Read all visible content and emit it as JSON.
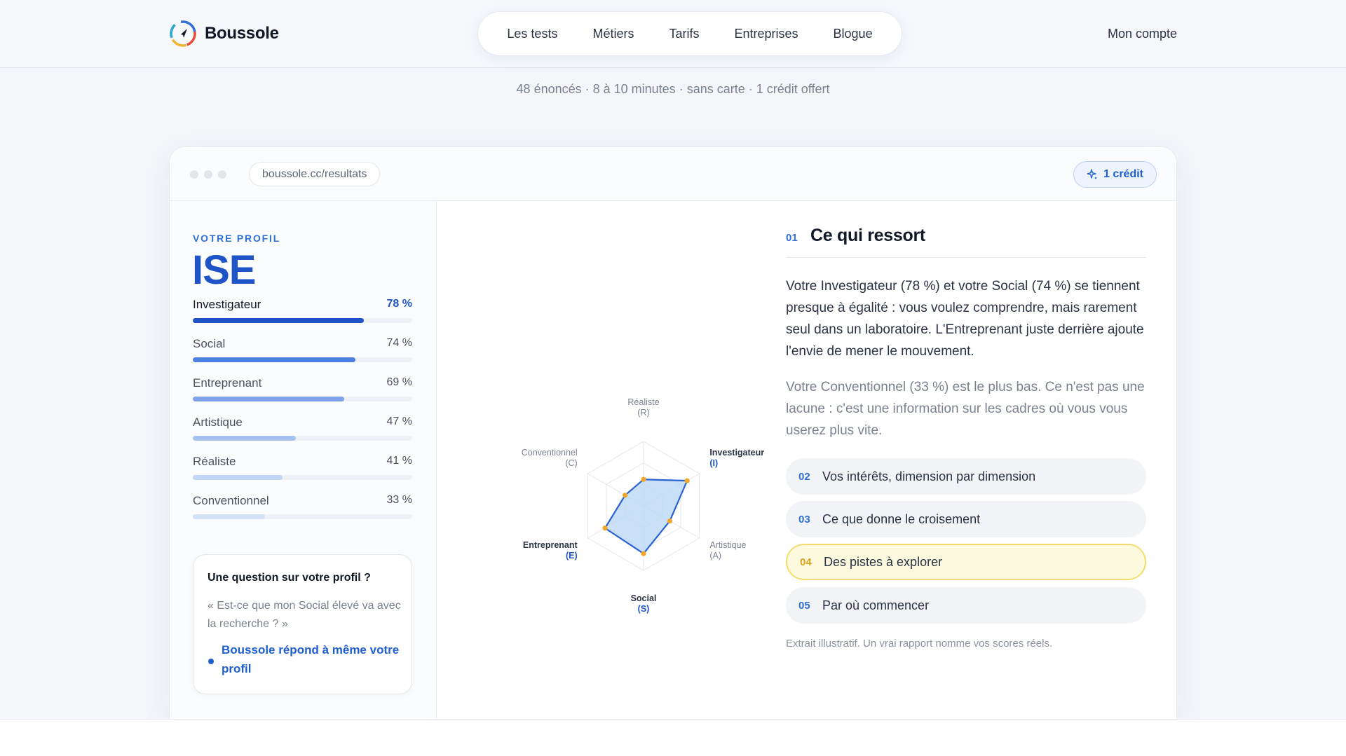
{
  "header": {
    "brand": "Boussole",
    "nav": [
      "Les tests",
      "Métiers",
      "Tarifs",
      "Entreprises",
      "Blogue"
    ],
    "account": "Mon compte"
  },
  "subline": "48 énoncés · 8 à 10 minutes · sans carte · 1 crédit offert",
  "browser": {
    "url": "boussole.cc/resultats",
    "credit": "1 crédit"
  },
  "profile": {
    "eyebrow": "VOTRE PROFIL",
    "code": "ISE",
    "scores": [
      {
        "name": "Investigateur",
        "pct": "78 %",
        "value": 78,
        "color": "#1e54c7",
        "strong": true
      },
      {
        "name": "Social",
        "pct": "74 %",
        "value": 74,
        "color": "#4d7fe0",
        "strong": false
      },
      {
        "name": "Entreprenant",
        "pct": "69 %",
        "value": 69,
        "color": "#7ea3ea",
        "strong": false
      },
      {
        "name": "Artistique",
        "pct": "47 %",
        "value": 47,
        "color": "#a6c2f1",
        "strong": false
      },
      {
        "name": "Réaliste",
        "pct": "41 %",
        "value": 41,
        "color": "#c3d6f5",
        "strong": false
      },
      {
        "name": "Conventionnel",
        "pct": "33 %",
        "value": 33,
        "color": "#d4e2f7",
        "strong": false
      }
    ]
  },
  "question": {
    "title": "Une question sur votre profil ?",
    "quote": "« Est-ce que mon Social élevé va avec la recherche ? »",
    "answer": "Boussole répond à même votre profil"
  },
  "chart_data": {
    "type": "radar",
    "axes": [
      {
        "name": "Réaliste",
        "code": "(R)",
        "value": 41,
        "highlight": false
      },
      {
        "name": "Investigateur",
        "code": "(I)",
        "value": 78,
        "highlight": true
      },
      {
        "name": "Artistique",
        "code": "(A)",
        "value": 47,
        "highlight": false
      },
      {
        "name": "Social",
        "code": "(S)",
        "value": 74,
        "highlight": true
      },
      {
        "name": "Entreprenant",
        "code": "(E)",
        "value": 69,
        "highlight": true
      },
      {
        "name": "Conventionnel",
        "code": "(C)",
        "value": 33,
        "highlight": false
      }
    ],
    "max": 100,
    "fill_color": "#bcd8f5",
    "line_color": "#2a63d4",
    "point_color": "#f0a52b"
  },
  "report": {
    "num": "01",
    "title": "Ce qui ressort",
    "p1": "Votre Investigateur (78 %) et votre Social (74 %) se tiennent presque à égalité : vous voulez comprendre, mais rarement seul dans un laboratoire. L'Entreprenant juste derrière ajoute l'envie de mener le mouvement.",
    "p2": "Votre Conventionnel (33 %) est le plus bas. Ce n'est pas une lacune : c'est une information sur les cadres où vous vous userez plus vite.",
    "sections": [
      {
        "num": "02",
        "label": "Vos intérêts, dimension par dimension"
      },
      {
        "num": "03",
        "label": "Ce que donne le croisement"
      },
      {
        "num": "04",
        "label": "Des pistes à explorer"
      },
      {
        "num": "05",
        "label": "Par où commencer"
      }
    ],
    "note": "Extrait illustratif. Un vrai rapport nomme vos scores réels."
  }
}
